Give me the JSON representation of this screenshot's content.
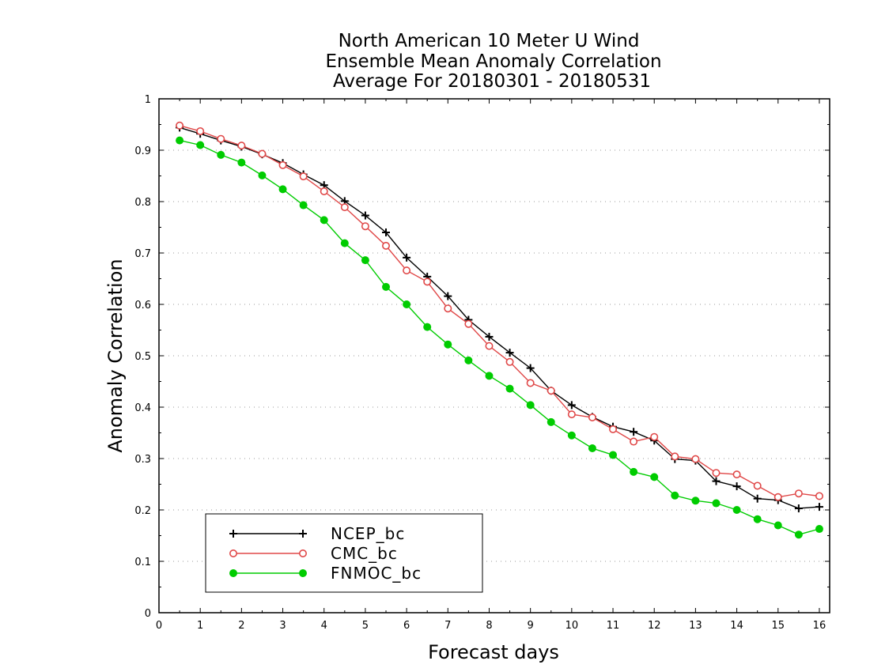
{
  "chart_data": {
    "type": "line",
    "title": [
      "North American 10 Meter U Wind",
      "Ensemble Mean Anomaly Correlation",
      "Average For 20180301 - 20180531"
    ],
    "xlabel": "Forecast days",
    "ylabel": "Anomaly Correlation",
    "xlim": [
      0,
      16.25
    ],
    "ylim": [
      0,
      1
    ],
    "x_ticks": [
      "0",
      "1",
      "2",
      "3",
      "4",
      "5",
      "6",
      "7",
      "8",
      "9",
      "10",
      "11",
      "12",
      "13",
      "14",
      "15",
      "16"
    ],
    "y_ticks": [
      "0",
      "0.1",
      "0.2",
      "0.3",
      "0.4",
      "0.5",
      "0.6",
      "0.7",
      "0.8",
      "0.9",
      "1"
    ],
    "grid": "horizontal dotted",
    "legend_position": "bottom-left",
    "x": [
      0.5,
      1,
      1.5,
      2,
      2.5,
      3,
      3.5,
      4,
      4.5,
      5,
      5.5,
      6,
      6.5,
      7,
      7.5,
      8,
      8.5,
      9,
      9.5,
      10,
      10.5,
      11,
      11.5,
      12,
      12.5,
      13,
      13.5,
      14,
      14.5,
      15,
      15.5,
      16
    ],
    "series": [
      {
        "name": "NCEP_bc",
        "color": "#000000",
        "marker": "plus",
        "values": [
          0.944,
          0.932,
          0.919,
          0.907,
          0.892,
          0.875,
          0.853,
          0.832,
          0.801,
          0.773,
          0.74,
          0.691,
          0.654,
          0.616,
          0.57,
          0.537,
          0.506,
          0.476,
          0.432,
          0.404,
          0.381,
          0.362,
          0.352,
          0.335,
          0.299,
          0.296,
          0.256,
          0.246,
          0.222,
          0.219,
          0.203,
          0.206
        ]
      },
      {
        "name": "CMC_bc",
        "color": "#e04848",
        "marker": "open-circle",
        "values": [
          0.948,
          0.937,
          0.922,
          0.909,
          0.893,
          0.871,
          0.849,
          0.82,
          0.789,
          0.752,
          0.714,
          0.666,
          0.644,
          0.592,
          0.562,
          0.519,
          0.488,
          0.447,
          0.432,
          0.386,
          0.38,
          0.357,
          0.333,
          0.342,
          0.304,
          0.299,
          0.272,
          0.269,
          0.247,
          0.225,
          0.232,
          0.227
        ]
      },
      {
        "name": "FNMOC_bc",
        "color": "#00cc00",
        "marker": "filled-circle",
        "values": [
          0.919,
          0.91,
          0.891,
          0.876,
          0.851,
          0.824,
          0.793,
          0.764,
          0.719,
          0.686,
          0.634,
          0.6,
          0.556,
          0.522,
          0.491,
          0.461,
          0.436,
          0.404,
          0.371,
          0.345,
          0.32,
          0.307,
          0.274,
          0.264,
          0.228,
          0.218,
          0.213,
          0.2,
          0.182,
          0.17,
          0.152,
          0.163
        ]
      }
    ]
  }
}
